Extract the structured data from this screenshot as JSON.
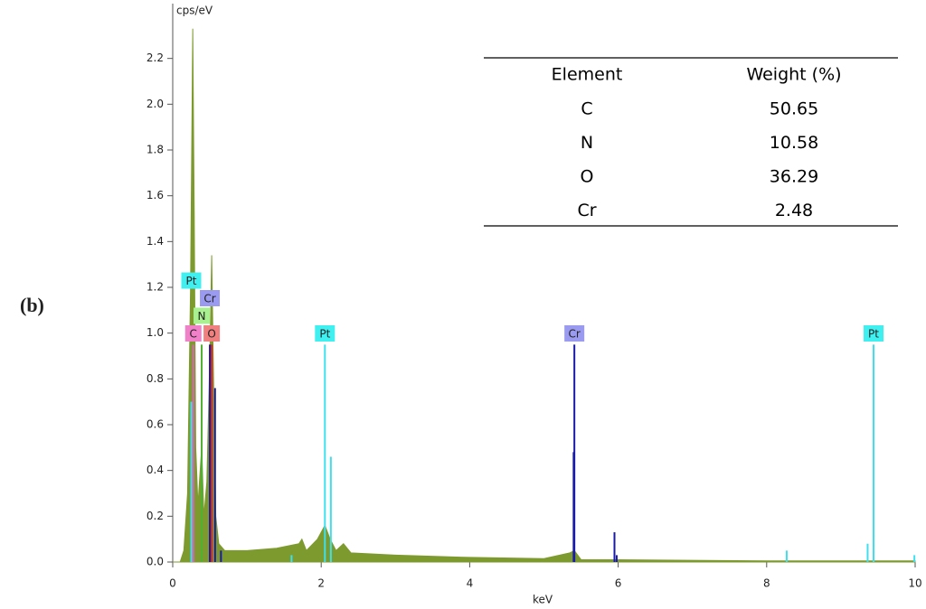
{
  "chart_data": {
    "type": "spectrum",
    "panel_label": "(b)",
    "y_label": "cps/eV",
    "x_label": "keV",
    "xlim": [
      0,
      10
    ],
    "xticks": [
      0,
      2,
      4,
      6,
      8,
      10
    ],
    "ylim": [
      0,
      2.4
    ],
    "yticks": [
      {
        "value": 0,
        "label": "0.0"
      },
      0.2,
      0.4,
      0.6,
      0.8,
      {
        "value": 1,
        "label": "1.0"
      },
      1.2,
      1.4,
      1.6,
      1.8,
      {
        "value": 2,
        "label": "2.0"
      },
      2.2
    ],
    "color": "#7d9a2e",
    "x": [
      0,
      0.1,
      0.15,
      0.2,
      0.24,
      0.27,
      0.29,
      0.31,
      0.34,
      0.37,
      0.39,
      0.42,
      0.46,
      0.5,
      0.525,
      0.55,
      0.58,
      0.62,
      0.7,
      1.0,
      1.4,
      1.7,
      1.74,
      1.8,
      1.95,
      2.05,
      2.12,
      2.2,
      2.3,
      2.4,
      3.0,
      4.0,
      5.0,
      5.35,
      5.41,
      5.5,
      6.0,
      8.0,
      10.0
    ],
    "values": [
      0,
      0,
      0.05,
      0.3,
      1.2,
      2.33,
      1.5,
      0.5,
      0.25,
      0.4,
      0.5,
      0.2,
      0.35,
      0.9,
      1.34,
      0.8,
      0.2,
      0.08,
      0.05,
      0.05,
      0.06,
      0.08,
      0.1,
      0.05,
      0.1,
      0.16,
      0.1,
      0.05,
      0.08,
      0.04,
      0.03,
      0.02,
      0.015,
      0.04,
      0.05,
      0.01,
      0.01,
      0.005,
      0.005
    ],
    "markers": [
      {
        "name": "Pt",
        "color": "#3ee0ee",
        "tag_color": "#40f0f0",
        "lines": [
          {
            "x": 0.25,
            "y": 0.7,
            "tag": true
          },
          {
            "x": 1.6,
            "y": 0.03
          },
          {
            "x": 2.05,
            "y": 0.95,
            "tag": true
          },
          {
            "x": 2.13,
            "y": 0.46
          },
          {
            "x": 8.27,
            "y": 0.05
          },
          {
            "x": 9.36,
            "y": 0.08
          },
          {
            "x": 9.44,
            "y": 0.95,
            "tag": true
          },
          {
            "x": 9.99,
            "y": 0.03
          }
        ]
      },
      {
        "name": "Cr",
        "color": "#1a1aa8",
        "tag_color": "#9a9af0",
        "lines": [
          {
            "x": 0.5,
            "y": 0.95,
            "tag": true
          },
          {
            "x": 0.57,
            "y": 0.76
          },
          {
            "x": 0.65,
            "y": 0.05
          },
          {
            "x": 5.41,
            "y": 0.95,
            "tag": true
          },
          {
            "x": 5.4,
            "y": 0.48
          },
          {
            "x": 5.95,
            "y": 0.13
          },
          {
            "x": 5.98,
            "y": 0.03
          }
        ]
      },
      {
        "name": "N",
        "color": "#50b030",
        "tag_color": "#a8f090",
        "lines": [
          {
            "x": 0.39,
            "y": 0.95,
            "tag": true
          }
        ]
      },
      {
        "name": "C",
        "color": "#e060c0",
        "tag_color": "#f080c8",
        "lines": [
          {
            "x": 0.277,
            "y": 0.95,
            "tag": true
          }
        ]
      },
      {
        "name": "O",
        "color": "#e02020",
        "tag_color": "#f08080",
        "lines": [
          {
            "x": 0.525,
            "y": 0.95,
            "tag": true
          }
        ]
      }
    ],
    "table": {
      "columns": [
        "Element",
        "Weight (%)"
      ],
      "rows": [
        [
          "C",
          50.65
        ],
        [
          "N",
          10.58
        ],
        [
          "O",
          36.29
        ],
        [
          "Cr",
          2.48
        ]
      ]
    }
  }
}
